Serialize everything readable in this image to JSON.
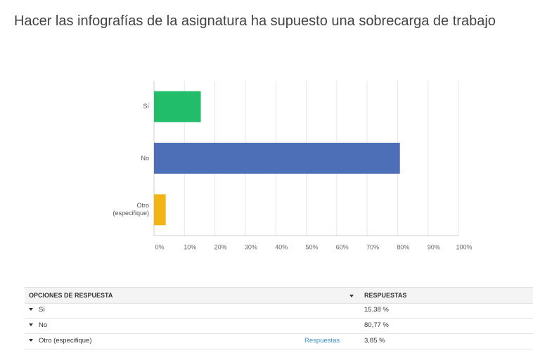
{
  "chart_data": {
    "type": "bar",
    "orientation": "horizontal",
    "title": "Hacer las infografías de la asignatura ha supuesto una sobrecarga de trabajo",
    "categories": [
      "Sí",
      "No",
      "Otro (especifique)"
    ],
    "values": [
      15.38,
      80.77,
      3.85
    ],
    "colors": [
      "#22bd6a",
      "#4d6fb8",
      "#f3b516"
    ],
    "xlim": [
      0,
      100
    ],
    "xticks": [
      {
        "value": 0,
        "label": "0%"
      },
      {
        "value": 10,
        "label": "10%"
      },
      {
        "value": 20,
        "label": "20%"
      },
      {
        "value": 30,
        "label": "30%"
      },
      {
        "value": 40,
        "label": "40%"
      },
      {
        "value": 50,
        "label": "50%"
      },
      {
        "value": 60,
        "label": "60%"
      },
      {
        "value": 70,
        "label": "70%"
      },
      {
        "value": 80,
        "label": "80%"
      },
      {
        "value": 90,
        "label": "90%"
      },
      {
        "value": 100,
        "label": "100%"
      }
    ],
    "grid": true
  },
  "table": {
    "header": [
      "OPCIONES DE RESPUESTA",
      "RESPUESTAS"
    ],
    "rows": [
      [
        "Sí",
        "15,38 %"
      ],
      [
        "No",
        "80,77 %"
      ],
      [
        "Otro (especifique)",
        "3,85 %"
      ]
    ],
    "link": "Respuestas"
  }
}
